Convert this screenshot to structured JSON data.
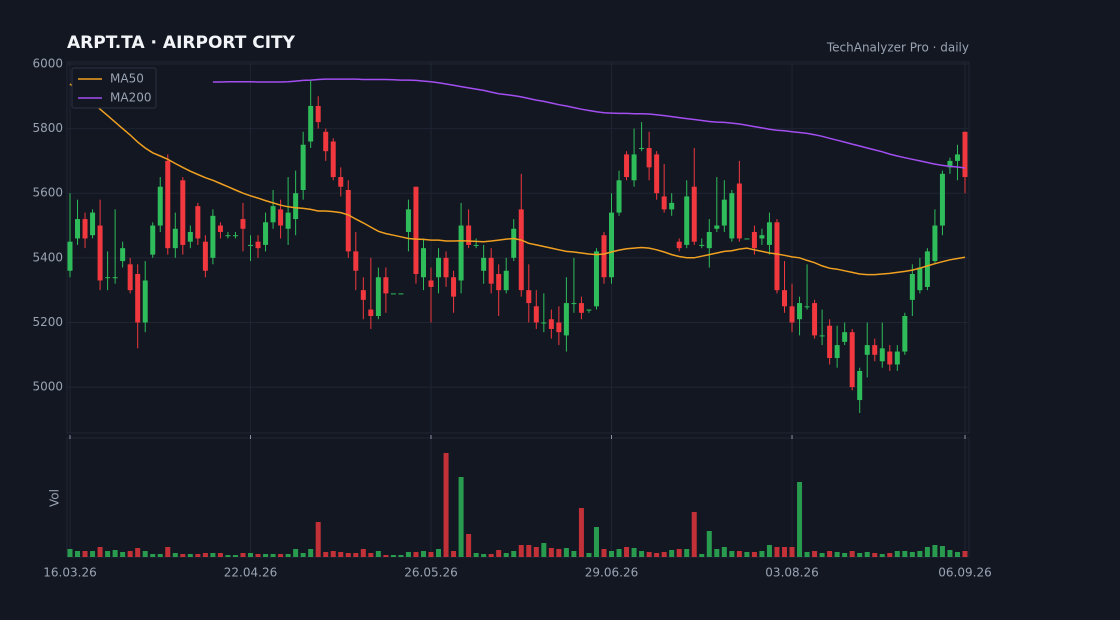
{
  "chart_data": {
    "type": "candlestick",
    "title": "ARPT.TA  ·  AIRPORT CITY",
    "subtitle": "TechAnalyzer Pro · daily",
    "categories": [
      "16.03.26",
      null,
      null,
      null,
      null,
      null,
      null,
      null,
      null,
      null,
      null,
      null,
      null,
      null,
      null,
      null,
      null,
      null,
      null,
      null,
      null,
      null,
      null,
      null,
      "22.04.26",
      null,
      null,
      null,
      null,
      null,
      null,
      null,
      null,
      null,
      null,
      null,
      null,
      null,
      null,
      null,
      null,
      null,
      null,
      null,
      null,
      null,
      null,
      null,
      "26.05.26",
      null,
      null,
      null,
      null,
      null,
      null,
      null,
      null,
      null,
      null,
      null,
      null,
      null,
      null,
      null,
      null,
      null,
      null,
      null,
      null,
      null,
      null,
      null,
      "29.06.26",
      null,
      null,
      null,
      null,
      null,
      null,
      null,
      null,
      null,
      null,
      null,
      null,
      null,
      null,
      null,
      null,
      null,
      null,
      null,
      null,
      null,
      null,
      null,
      "03.08.26",
      null,
      null,
      null,
      null,
      null,
      null,
      null,
      null,
      null,
      null,
      null,
      null,
      null,
      null,
      null,
      null,
      null,
      null,
      null,
      null,
      null,
      null,
      "06.09.26"
    ],
    "open": [
      5360,
      5460,
      5520,
      5470,
      5500,
      5340,
      5340,
      5390,
      5380,
      5350,
      5200,
      5410,
      5500,
      5700,
      5430,
      5640,
      5450,
      5560,
      5450,
      5400,
      5500,
      5470,
      5470,
      5520,
      5440,
      5450,
      5440,
      5510,
      5550,
      5490,
      5520,
      5610,
      5760,
      5870,
      5790,
      5760,
      5650,
      5610,
      5420,
      5300,
      5240,
      5220,
      5340,
      5290,
      5290,
      5480,
      5620,
      5340,
      5330,
      5340,
      5400,
      5340,
      5330,
      5500,
      5440,
      5360,
      5400,
      5350,
      5300,
      5400,
      5550,
      5300,
      5250,
      5200,
      5210,
      5200,
      5160,
      5260,
      5260,
      5240,
      5250,
      5470,
      5340,
      5540,
      5720,
      5640,
      5740,
      5740,
      5720,
      5590,
      5550,
      5450,
      5440,
      5620,
      5440,
      5430,
      5490,
      5500,
      5460,
      5630,
      5460,
      5480,
      5460,
      5440,
      5510,
      5300,
      5250,
      5210,
      5250,
      5260,
      5160,
      5190,
      5090,
      5140,
      5170,
      4960,
      5100,
      5130,
      5080,
      5110,
      5070,
      5110,
      5270,
      5300,
      5310,
      5390,
      5500,
      5680,
      5700,
      5790
    ],
    "high": [
      5600,
      5580,
      5540,
      5550,
      5580,
      5420,
      5550,
      5450,
      5400,
      5380,
      5390,
      5510,
      5650,
      5720,
      5540,
      5650,
      5500,
      5570,
      5470,
      5550,
      5510,
      5480,
      5480,
      5570,
      5470,
      5470,
      5540,
      5610,
      5580,
      5650,
      5670,
      5790,
      5950,
      5900,
      5800,
      5770,
      5680,
      5640,
      5480,
      5340,
      5400,
      5370,
      5370,
      5290,
      5290,
      5580,
      5620,
      5460,
      5370,
      5430,
      5420,
      5360,
      5570,
      5550,
      5460,
      5440,
      5430,
      5380,
      5400,
      5520,
      5660,
      5380,
      5300,
      5290,
      5240,
      5250,
      5340,
      5400,
      5280,
      5240,
      5430,
      5480,
      5600,
      5670,
      5730,
      5800,
      5820,
      5790,
      5730,
      5690,
      5600,
      5460,
      5640,
      5740,
      5460,
      5520,
      5650,
      5640,
      5610,
      5700,
      5460,
      5500,
      5490,
      5540,
      5520,
      5390,
      5320,
      5280,
      5380,
      5270,
      5240,
      5210,
      5190,
      5200,
      5180,
      5060,
      5200,
      5150,
      5200,
      5130,
      5130,
      5230,
      5380,
      5400,
      5430,
      5550,
      5670,
      5710,
      5750,
      5790
    ],
    "low": [
      5340,
      5440,
      5430,
      5460,
      5300,
      5300,
      5320,
      5370,
      5290,
      5120,
      5170,
      5400,
      5480,
      5410,
      5400,
      5410,
      5430,
      5440,
      5340,
      5380,
      5460,
      5460,
      5460,
      5420,
      5390,
      5400,
      5420,
      5490,
      5460,
      5440,
      5470,
      5580,
      5740,
      5800,
      5700,
      5640,
      5590,
      5400,
      5300,
      5210,
      5180,
      5210,
      5230,
      5290,
      5290,
      5420,
      5320,
      5300,
      5200,
      5290,
      5310,
      5230,
      5290,
      5430,
      5430,
      5320,
      5290,
      5220,
      5290,
      5390,
      5280,
      5200,
      5180,
      5170,
      5150,
      5130,
      5110,
      5230,
      5210,
      5230,
      5240,
      5320,
      5320,
      5530,
      5640,
      5620,
      5730,
      5640,
      5580,
      5540,
      5530,
      5420,
      5430,
      5440,
      5430,
      5370,
      5480,
      5480,
      5450,
      5450,
      5460,
      5410,
      5440,
      5410,
      5290,
      5230,
      5170,
      5160,
      5240,
      5150,
      5130,
      5070,
      5060,
      5130,
      4990,
      4920,
      5030,
      5080,
      5060,
      5050,
      5050,
      5100,
      5220,
      5290,
      5300,
      5380,
      5470,
      5660,
      5640,
      5600
    ],
    "close": [
      5450,
      5520,
      5460,
      5540,
      5330,
      5340,
      5340,
      5430,
      5300,
      5200,
      5330,
      5500,
      5620,
      5430,
      5490,
      5440,
      5480,
      5460,
      5360,
      5530,
      5480,
      5470,
      5470,
      5490,
      5440,
      5430,
      5510,
      5560,
      5500,
      5540,
      5600,
      5750,
      5870,
      5820,
      5730,
      5650,
      5620,
      5420,
      5360,
      5270,
      5220,
      5340,
      5290,
      5290,
      5290,
      5550,
      5350,
      5430,
      5310,
      5400,
      5340,
      5280,
      5500,
      5440,
      5440,
      5400,
      5320,
      5300,
      5360,
      5490,
      5300,
      5260,
      5200,
      5200,
      5180,
      5170,
      5260,
      5260,
      5230,
      5240,
      5420,
      5340,
      5540,
      5640,
      5650,
      5720,
      5740,
      5680,
      5600,
      5550,
      5570,
      5430,
      5590,
      5450,
      5440,
      5480,
      5500,
      5580,
      5600,
      5460,
      5460,
      5430,
      5470,
      5510,
      5300,
      5250,
      5200,
      5260,
      5250,
      5160,
      5160,
      5090,
      5130,
      5170,
      5000,
      5050,
      5130,
      5100,
      5120,
      5070,
      5110,
      5220,
      5350,
      5370,
      5420,
      5500,
      5660,
      5700,
      5720,
      5650
    ],
    "up_color": "#2ebd5a",
    "down_color": "#f0383e",
    "series": [
      {
        "name": "MA50",
        "color": "#f0a020",
        "values": [
          5938,
          5920,
          5900,
          5880,
          5860,
          5840,
          5820,
          5800,
          5780,
          5758,
          5740,
          5725,
          5715,
          5705,
          5692,
          5680,
          5668,
          5658,
          5648,
          5640,
          5630,
          5620,
          5610,
          5600,
          5592,
          5585,
          5577,
          5570,
          5563,
          5558,
          5555,
          5553,
          5550,
          5545,
          5545,
          5543,
          5540,
          5533,
          5520,
          5508,
          5495,
          5482,
          5475,
          5470,
          5465,
          5460,
          5458,
          5457,
          5455,
          5455,
          5452,
          5452,
          5453,
          5452,
          5451,
          5450,
          5452,
          5455,
          5458,
          5460,
          5455,
          5445,
          5440,
          5435,
          5430,
          5425,
          5420,
          5418,
          5415,
          5412,
          5410,
          5412,
          5418,
          5424,
          5428,
          5430,
          5432,
          5430,
          5425,
          5418,
          5410,
          5404,
          5400,
          5400,
          5405,
          5410,
          5415,
          5420,
          5422,
          5427,
          5430,
          5425,
          5420,
          5415,
          5412,
          5408,
          5403,
          5400,
          5392,
          5385,
          5375,
          5368,
          5365,
          5360,
          5355,
          5350,
          5348,
          5348,
          5350,
          5352,
          5355,
          5358,
          5362,
          5368,
          5375,
          5382,
          5388,
          5394,
          5398,
          5402
        ]
      },
      {
        "name": "MA200",
        "color": "#a24ef0",
        "values": [
          null,
          null,
          null,
          null,
          null,
          null,
          null,
          null,
          null,
          null,
          null,
          null,
          null,
          null,
          null,
          null,
          null,
          null,
          null,
          5944,
          5944,
          5945,
          5945,
          5945,
          5945,
          5944,
          5944,
          5944,
          5944,
          5945,
          5947,
          5949,
          5950,
          5952,
          5953,
          5953,
          5953,
          5953,
          5953,
          5952,
          5952,
          5952,
          5952,
          5951,
          5950,
          5950,
          5949,
          5947,
          5945,
          5942,
          5938,
          5934,
          5930,
          5926,
          5922,
          5918,
          5913,
          5908,
          5905,
          5902,
          5898,
          5893,
          5888,
          5884,
          5879,
          5874,
          5870,
          5865,
          5860,
          5856,
          5852,
          5849,
          5848,
          5847,
          5847,
          5846,
          5846,
          5845,
          5843,
          5840,
          5837,
          5834,
          5831,
          5828,
          5825,
          5822,
          5820,
          5819,
          5817,
          5814,
          5810,
          5806,
          5802,
          5798,
          5795,
          5793,
          5790,
          5788,
          5785,
          5781,
          5776,
          5770,
          5764,
          5758,
          5752,
          5746,
          5740,
          5734,
          5728,
          5721,
          5715,
          5710,
          5705,
          5700,
          5695,
          5690,
          5686,
          5683,
          5681,
          5678
        ]
      }
    ],
    "ylim": [
      4858,
      6006
    ],
    "yticks": [
      5000,
      5200,
      5400,
      5600,
      5800,
      6000
    ],
    "grid": true,
    "legend": "top-left",
    "volume": {
      "label": "Vol",
      "ylim": [
        0,
        117
      ],
      "values": [
        8,
        6,
        6,
        6,
        10,
        6,
        7,
        5,
        6,
        9,
        6,
        3,
        3,
        10,
        4,
        3,
        3,
        3,
        4,
        4,
        4,
        2,
        2,
        4,
        4,
        3,
        3,
        3,
        3,
        3,
        8,
        4,
        8,
        35,
        5,
        6,
        5,
        4,
        4,
        8,
        4,
        6,
        2,
        2,
        2,
        5,
        5,
        6,
        5,
        8,
        104,
        6,
        80,
        23,
        4,
        3,
        3,
        7,
        4,
        6,
        12,
        12,
        10,
        14,
        9,
        8,
        9,
        6,
        49,
        4,
        30,
        8,
        6,
        8,
        10,
        9,
        6,
        5,
        4,
        5,
        7,
        8,
        8,
        45,
        3,
        26,
        8,
        10,
        6,
        6,
        5,
        5,
        6,
        12,
        10,
        10,
        10,
        75,
        5,
        6,
        4,
        6,
        5,
        4,
        6,
        4,
        5,
        4,
        3,
        4,
        6,
        6,
        5,
        6,
        10,
        12,
        11,
        7,
        5,
        6
      ]
    }
  }
}
